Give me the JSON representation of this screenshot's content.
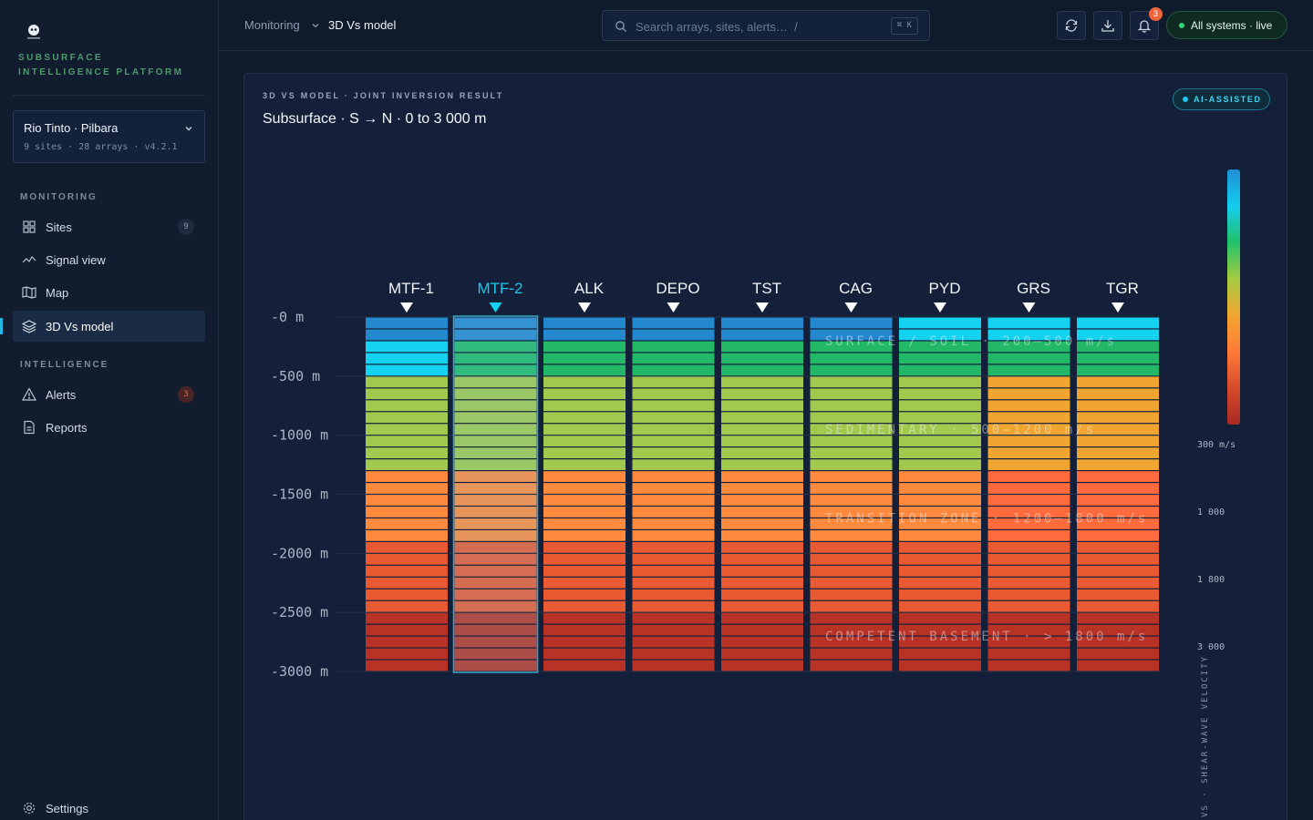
{
  "sidebar": {
    "platform": "SUBSURFACE INTELLIGENCE PLATFORM",
    "org": {
      "name": "Rio Tinto · Pilbara",
      "meta": "9 sites · 28 arrays · v4.2.1"
    },
    "sections": {
      "monitoring": "MONITORING",
      "intelligence": "INTELLIGENCE"
    },
    "items": [
      {
        "label": "Sites",
        "badge": "9",
        "icon": "grid-icon"
      },
      {
        "label": "Signal view",
        "icon": "signal-icon"
      },
      {
        "label": "Map",
        "icon": "map-icon"
      },
      {
        "label": "3D Vs model",
        "icon": "layers-icon",
        "active": true
      },
      {
        "label": "Alerts",
        "badge": "3",
        "icon": "alert-triangle-icon"
      },
      {
        "label": "Reports",
        "icon": "document-icon"
      }
    ],
    "settings": "Settings"
  },
  "topbar": {
    "breadcrumb": [
      "Monitoring",
      "3D Vs model"
    ],
    "search_placeholder": "Search arrays, sites, alerts…  /",
    "search_shortcut": "⌘ K",
    "notifications": "3",
    "status": "All systems · live"
  },
  "panel": {
    "eyebrow": "3D VS MODEL · JOINT INVERSION RESULT",
    "title": "Subsurface · S → N · 0 to 3 000 m",
    "badge": "AI-ASSISTED"
  },
  "colors": {
    "accent": "#22c7ee",
    "live": "#2fd27a",
    "alert": "#f0643c"
  },
  "chart_data": {
    "type": "heatmap",
    "title": "Subsurface · S → N · 0 to 3 000 m",
    "selected_site": "MTF-2",
    "sites": [
      "MTF-1",
      "MTF-2",
      "ALK",
      "DEPO",
      "TST",
      "CAG",
      "PYD",
      "GRS",
      "TGR"
    ],
    "depth_ticks": [
      "-0 m",
      "-500 m",
      "-1000 m",
      "-1500 m",
      "-2000 m",
      "-2500 m",
      "-3000 m"
    ],
    "depth_range_m": [
      0,
      3000
    ],
    "layers_per_column": 30,
    "layer_thickness_m": 100,
    "zones": [
      {
        "label": "SURFACE / SOIL · 200–500 m/s",
        "top_m": 200
      },
      {
        "label": "SEDIMENTARY · 500–1200 m/s",
        "top_m": 950
      },
      {
        "label": "TRANSITION ZONE · 1200–1800 m/s",
        "top_m": 1700
      },
      {
        "label": "COMPETENT BASEMENT · > 1800 m/s",
        "top_m": 2700
      }
    ],
    "columns": [
      {
        "site": "MTF-1",
        "class_runs": [
          [
            1,
            2
          ],
          [
            0,
            3
          ],
          [
            3,
            8
          ],
          [
            4,
            6
          ],
          [
            5,
            6
          ],
          [
            6,
            5
          ]
        ]
      },
      {
        "site": "MTF-2",
        "class_runs": [
          [
            1,
            2
          ],
          [
            2,
            3
          ],
          [
            3,
            8
          ],
          [
            4,
            6
          ],
          [
            5,
            6
          ],
          [
            6,
            5
          ]
        ]
      },
      {
        "site": "ALK",
        "class_runs": [
          [
            1,
            2
          ],
          [
            2,
            3
          ],
          [
            3,
            8
          ],
          [
            4,
            6
          ],
          [
            5,
            6
          ],
          [
            6,
            5
          ]
        ]
      },
      {
        "site": "DEPO",
        "class_runs": [
          [
            1,
            2
          ],
          [
            2,
            3
          ],
          [
            3,
            8
          ],
          [
            4,
            6
          ],
          [
            5,
            6
          ],
          [
            6,
            5
          ]
        ]
      },
      {
        "site": "TST",
        "class_runs": [
          [
            1,
            2
          ],
          [
            2,
            3
          ],
          [
            3,
            8
          ],
          [
            4,
            6
          ],
          [
            5,
            6
          ],
          [
            6,
            5
          ]
        ]
      },
      {
        "site": "CAG",
        "class_runs": [
          [
            1,
            2
          ],
          [
            2,
            3
          ],
          [
            3,
            8
          ],
          [
            4,
            6
          ],
          [
            5,
            6
          ],
          [
            6,
            5
          ]
        ]
      },
      {
        "site": "PYD",
        "class_runs": [
          [
            0,
            2
          ],
          [
            2,
            3
          ],
          [
            3,
            8
          ],
          [
            4,
            6
          ],
          [
            5,
            6
          ],
          [
            6,
            5
          ]
        ]
      },
      {
        "site": "GRS",
        "class_runs": [
          [
            0,
            2
          ],
          [
            2,
            3
          ],
          [
            7,
            8
          ],
          [
            8,
            6
          ],
          [
            5,
            6
          ],
          [
            6,
            5
          ]
        ]
      },
      {
        "site": "TGR",
        "class_runs": [
          [
            0,
            2
          ],
          [
            2,
            3
          ],
          [
            7,
            8
          ],
          [
            8,
            6
          ],
          [
            5,
            6
          ],
          [
            6,
            5
          ]
        ]
      }
    ],
    "class_colors": [
      "#14d2f0",
      "#2488cf",
      "#22b868",
      "#a2c94e",
      "#ff8a3e",
      "#ea5a32",
      "#b93226",
      "#f0a530",
      "#ff6b3c"
    ],
    "legend": {
      "ticks": [
        "300 m/s",
        "1 000",
        "1 800",
        "3 000"
      ],
      "axis_label": "VS · SHEAR-WAVE VELOCITY",
      "gradient": [
        "#1e8fd6",
        "#14cdef",
        "#22c26a",
        "#a4cb40",
        "#f2a630",
        "#ff7a38",
        "#d84a2c",
        "#a82a22"
      ]
    }
  }
}
